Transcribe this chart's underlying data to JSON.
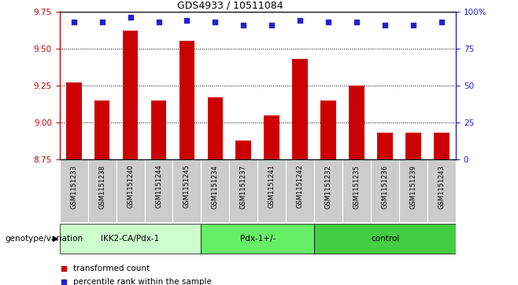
{
  "title": "GDS4933 / 10511084",
  "samples": [
    "GSM1151233",
    "GSM1151238",
    "GSM1151240",
    "GSM1151244",
    "GSM1151245",
    "GSM1151234",
    "GSM1151237",
    "GSM1151241",
    "GSM1151242",
    "GSM1151232",
    "GSM1151235",
    "GSM1151236",
    "GSM1151239",
    "GSM1151243"
  ],
  "transformed_count": [
    9.27,
    9.15,
    9.62,
    9.15,
    9.55,
    9.17,
    8.88,
    9.05,
    9.43,
    9.15,
    9.25,
    8.93,
    8.93,
    8.93
  ],
  "percentile_rank": [
    93,
    93,
    96,
    93,
    94,
    93,
    91,
    91,
    94,
    93,
    93,
    91,
    91,
    93
  ],
  "groups": [
    {
      "label": "IKK2-CA/Pdx-1",
      "start": 0,
      "end": 5,
      "color": "#ccffcc"
    },
    {
      "label": "Pdx-1+/-",
      "start": 5,
      "end": 9,
      "color": "#66ee66"
    },
    {
      "label": "control",
      "start": 9,
      "end": 14,
      "color": "#44cc44"
    }
  ],
  "bar_color": "#cc0000",
  "dot_color": "#2222cc",
  "ylim_left": [
    8.75,
    9.75
  ],
  "ylim_right": [
    0,
    100
  ],
  "yticks_left": [
    8.75,
    9.0,
    9.25,
    9.5,
    9.75
  ],
  "yticks_right": [
    0,
    25,
    50,
    75,
    100
  ],
  "ylabel_right_labels": [
    "0",
    "25",
    "50",
    "75",
    "100%"
  ],
  "grid_lines": [
    9.0,
    9.25,
    9.5
  ],
  "bar_width": 0.55,
  "cell_bg": "#cccccc",
  "cell_border": "#ffffff",
  "genotype_label": "genotype/variation",
  "legend": [
    {
      "label": "transformed count",
      "color": "#cc0000"
    },
    {
      "label": "percentile rank within the sample",
      "color": "#2222cc"
    }
  ]
}
